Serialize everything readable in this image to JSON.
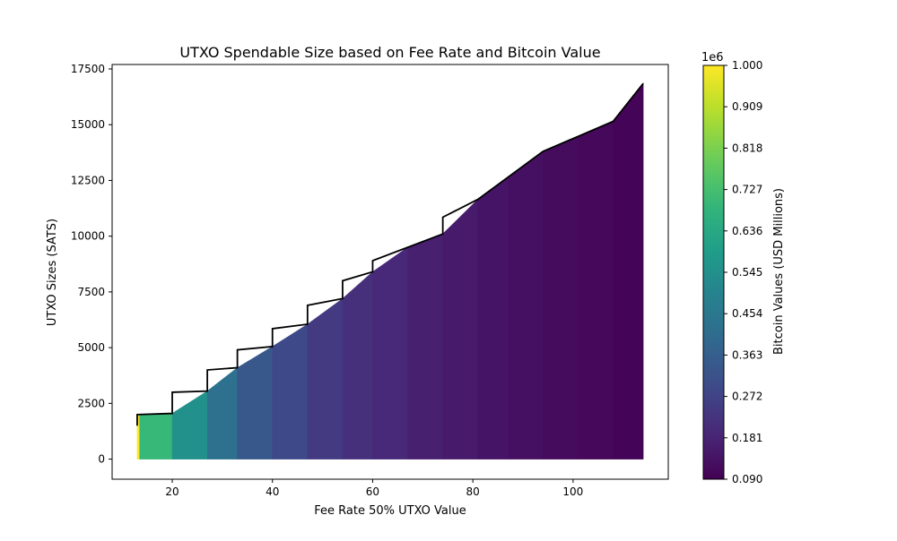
{
  "chart_data": {
    "type": "area",
    "title": "UTXO Spendable Size based on Fee Rate and Bitcoin Value",
    "xlabel": "Fee Rate 50% UTXO Value",
    "ylabel": "UTXO Sizes (SATS)",
    "xlim": [
      8.0,
      119.0
    ],
    "ylim": [
      -900,
      17700
    ],
    "x_ticks": [
      20,
      40,
      60,
      80,
      100
    ],
    "y_ticks": [
      0,
      2500,
      5000,
      7500,
      10000,
      12500,
      15000,
      17500
    ],
    "grid": false,
    "boundary": {
      "x": [
        13,
        13,
        20,
        20,
        27,
        27,
        33,
        33,
        40,
        40,
        47,
        47,
        54,
        54,
        60,
        60,
        67,
        74,
        74,
        81,
        94,
        108,
        114
      ],
      "y": [
        1500,
        2000,
        2050,
        3000,
        3050,
        4000,
        4100,
        4900,
        5050,
        5850,
        6050,
        6900,
        7200,
        8000,
        8400,
        8900,
        9500,
        10100,
        10850,
        11650,
        13800,
        15150,
        16850
      ]
    },
    "fill_bands": [
      {
        "x": [
          13.0,
          13.5
        ],
        "bitcoin_value": 1000000
      },
      {
        "x": [
          13.5,
          20.0
        ],
        "bitcoin_value": 700000
      },
      {
        "x": [
          20.0,
          27.0
        ],
        "bitcoin_value": 550000
      },
      {
        "x": [
          27.0,
          33.0
        ],
        "bitcoin_value": 430000
      },
      {
        "x": [
          33.0,
          40.0
        ],
        "bitcoin_value": 340000
      },
      {
        "x": [
          40.0,
          47.0
        ],
        "bitcoin_value": 290000
      },
      {
        "x": [
          47.0,
          54.0
        ],
        "bitcoin_value": 245000
      },
      {
        "x": [
          54.0,
          60.0
        ],
        "bitcoin_value": 215000
      },
      {
        "x": [
          60.0,
          67.0
        ],
        "bitcoin_value": 190000
      },
      {
        "x": [
          67.0,
          74.0
        ],
        "bitcoin_value": 170000
      },
      {
        "x": [
          74.0,
          81.0
        ],
        "bitcoin_value": 155000
      },
      {
        "x": [
          81.0,
          87.0
        ],
        "bitcoin_value": 140000
      },
      {
        "x": [
          87.0,
          94.0
        ],
        "bitcoin_value": 128000
      },
      {
        "x": [
          94.0,
          101.0
        ],
        "bitcoin_value": 118000
      },
      {
        "x": [
          101.0,
          108.0
        ],
        "bitcoin_value": 108000
      },
      {
        "x": [
          108.0,
          114.0
        ],
        "bitcoin_value": 98000
      }
    ],
    "colorbar": {
      "label": "Bitcoin Values (USD Millions)",
      "range": [
        0.09,
        1.0
      ],
      "scale_label": "1e6",
      "colormap": "viridis",
      "ticks": [
        "0.090",
        "0.181",
        "0.272",
        "0.363",
        "0.454",
        "0.545",
        "0.636",
        "0.727",
        "0.818",
        "0.909",
        "1.000"
      ]
    },
    "line_color": "#000000"
  }
}
